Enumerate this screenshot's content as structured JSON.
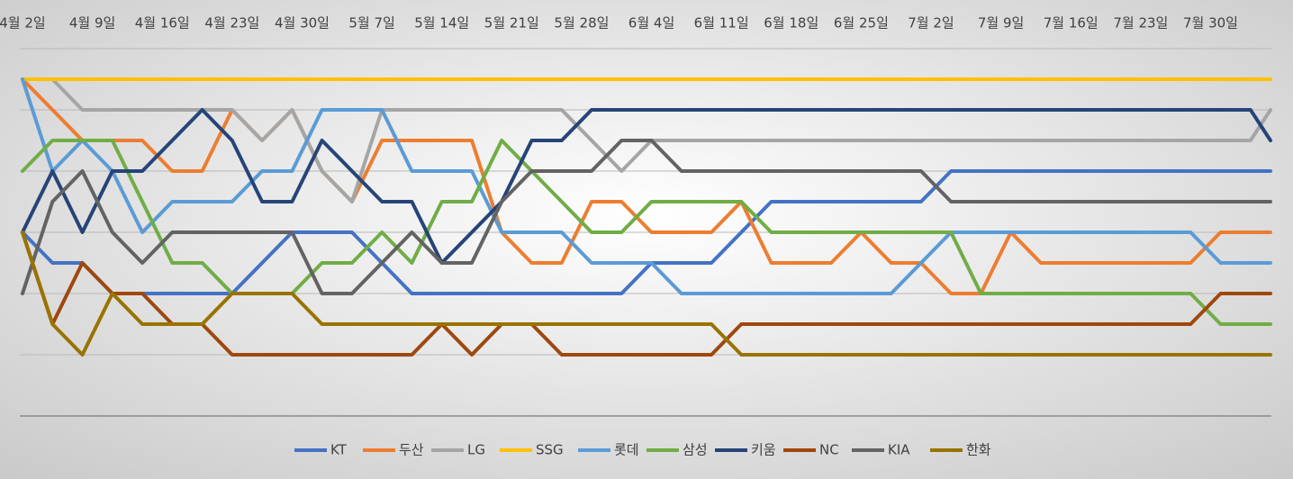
{
  "chart_data": {
    "type": "line",
    "x": [
      0,
      3,
      6,
      9,
      12,
      15,
      18,
      21,
      24,
      27,
      30,
      33,
      36,
      39,
      42,
      45,
      48,
      51,
      54,
      57,
      60,
      63,
      66,
      69,
      72,
      75,
      78,
      81,
      84,
      87,
      90,
      93,
      96,
      99,
      102,
      105,
      108,
      111,
      114,
      117,
      120,
      123,
      125
    ],
    "xlim": [
      0,
      125
    ],
    "xticks": [
      {
        "value": 0,
        "label": "4월 2일"
      },
      {
        "value": 7,
        "label": "4월 9일"
      },
      {
        "value": 14,
        "label": "4월 16일"
      },
      {
        "value": 21,
        "label": "4월 23일"
      },
      {
        "value": 28,
        "label": "4월 30일"
      },
      {
        "value": 35,
        "label": "5월 7일"
      },
      {
        "value": 42,
        "label": "5월 14일"
      },
      {
        "value": 49,
        "label": "5월 21일"
      },
      {
        "value": 56,
        "label": "5월 28일"
      },
      {
        "value": 63,
        "label": "6월 4일"
      },
      {
        "value": 70,
        "label": "6월 11일"
      },
      {
        "value": 77,
        "label": "6월 18일"
      },
      {
        "value": 84,
        "label": "6월 25일"
      },
      {
        "value": 91,
        "label": "7월 2일"
      },
      {
        "value": 98,
        "label": "7월 9일"
      },
      {
        "value": 105,
        "label": "7월 16일"
      },
      {
        "value": 112,
        "label": "7월 23일"
      },
      {
        "value": 119,
        "label": "7월 30일"
      }
    ],
    "ylim": [
      12,
      0
    ],
    "yticks": [
      0,
      2,
      4,
      6,
      8,
      10,
      12
    ],
    "grid": true,
    "legend": "bottom",
    "series": [
      {
        "name": "KT",
        "color": "#4472c4",
        "values": [
          6,
          7,
          7,
          8,
          8,
          8,
          8,
          8,
          7,
          6,
          6,
          6,
          7,
          8,
          8,
          8,
          8,
          8,
          8,
          8,
          8,
          7,
          7,
          7,
          6,
          5,
          5,
          5,
          5,
          5,
          5,
          4,
          4,
          4,
          4,
          4,
          4,
          4,
          4,
          4,
          4,
          4,
          4
        ]
      },
      {
        "name": "두산",
        "color": "#ed7d31",
        "values": [
          1,
          2,
          3,
          3,
          3,
          4,
          4,
          2,
          3,
          2,
          4,
          5,
          3,
          3,
          3,
          3,
          6,
          7,
          7,
          5,
          5,
          6,
          6,
          6,
          5,
          7,
          7,
          7,
          6,
          7,
          7,
          8,
          8,
          6,
          7,
          7,
          7,
          7,
          7,
          7,
          6,
          6,
          6
        ]
      },
      {
        "name": "LG",
        "color": "#a5a5a5",
        "values": [
          1,
          1,
          2,
          2,
          2,
          2,
          2,
          2,
          3,
          2,
          4,
          5,
          2,
          2,
          2,
          2,
          2,
          2,
          2,
          3,
          4,
          3,
          3,
          3,
          3,
          3,
          3,
          3,
          3,
          3,
          3,
          3,
          3,
          3,
          3,
          3,
          3,
          3,
          3,
          3,
          3,
          3,
          2
        ]
      },
      {
        "name": "SSG",
        "color": "#ffc000",
        "values": [
          1,
          1,
          1,
          1,
          1,
          1,
          1,
          1,
          1,
          1,
          1,
          1,
          1,
          1,
          1,
          1,
          1,
          1,
          1,
          1,
          1,
          1,
          1,
          1,
          1,
          1,
          1,
          1,
          1,
          1,
          1,
          1,
          1,
          1,
          1,
          1,
          1,
          1,
          1,
          1,
          1,
          1,
          1
        ]
      },
      {
        "name": "롯데",
        "color": "#5b9bd5",
        "values": [
          1,
          4,
          3,
          4,
          6,
          5,
          5,
          5,
          4,
          4,
          2,
          2,
          2,
          4,
          4,
          4,
          6,
          6,
          6,
          7,
          7,
          7,
          8,
          8,
          8,
          8,
          8,
          8,
          8,
          8,
          7,
          6,
          6,
          6,
          6,
          6,
          6,
          6,
          6,
          6,
          7,
          7,
          7
        ]
      },
      {
        "name": "삼성",
        "color": "#70ad47",
        "values": [
          4,
          3,
          3,
          3,
          5,
          7,
          7,
          8,
          8,
          8,
          7,
          7,
          6,
          7,
          5,
          5,
          3,
          4,
          5,
          6,
          6,
          5,
          5,
          5,
          5,
          6,
          6,
          6,
          6,
          6,
          6,
          6,
          8,
          8,
          8,
          8,
          8,
          8,
          8,
          8,
          9,
          9,
          9
        ]
      },
      {
        "name": "키움",
        "color": "#264478",
        "values": [
          6,
          4,
          6,
          4,
          4,
          3,
          2,
          3,
          5,
          5,
          3,
          4,
          5,
          5,
          7,
          6,
          5,
          3,
          3,
          2,
          2,
          2,
          2,
          2,
          2,
          2,
          2,
          2,
          2,
          2,
          2,
          2,
          2,
          2,
          2,
          2,
          2,
          2,
          2,
          2,
          2,
          2,
          3
        ]
      },
      {
        "name": "NC",
        "color": "#9e480e",
        "values": [
          6,
          9,
          7,
          8,
          8,
          9,
          9,
          10,
          10,
          10,
          10,
          10,
          10,
          10,
          9,
          10,
          9,
          9,
          10,
          10,
          10,
          10,
          10,
          10,
          9,
          9,
          9,
          9,
          9,
          9,
          9,
          9,
          9,
          9,
          9,
          9,
          9,
          9,
          9,
          9,
          8,
          8,
          8
        ]
      },
      {
        "name": "KIA",
        "color": "#636363",
        "values": [
          8,
          5,
          4,
          6,
          7,
          6,
          6,
          6,
          6,
          6,
          8,
          8,
          7,
          6,
          7,
          7,
          5,
          4,
          4,
          4,
          3,
          3,
          4,
          4,
          4,
          4,
          4,
          4,
          4,
          4,
          4,
          5,
          5,
          5,
          5,
          5,
          5,
          5,
          5,
          5,
          5,
          5,
          5
        ]
      },
      {
        "name": "한화",
        "color": "#997300",
        "values": [
          6,
          9,
          10,
          8,
          9,
          9,
          9,
          8,
          8,
          8,
          9,
          9,
          9,
          9,
          9,
          9,
          9,
          9,
          9,
          9,
          9,
          9,
          9,
          9,
          10,
          10,
          10,
          10,
          10,
          10,
          10,
          10,
          10,
          10,
          10,
          10,
          10,
          10,
          10,
          10,
          10,
          10,
          10
        ]
      }
    ]
  }
}
